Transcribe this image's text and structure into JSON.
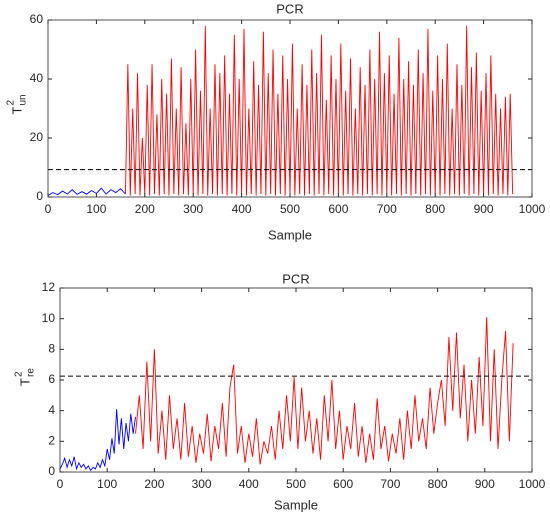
{
  "chart_data": [
    {
      "type": "line",
      "title": "PCR",
      "xlabel": "Sample",
      "ylabel": {
        "base": "T",
        "sup": "2",
        "sub": "un"
      },
      "xlim": [
        0,
        1000
      ],
      "xticks": [
        0,
        100,
        200,
        300,
        400,
        500,
        600,
        700,
        800,
        900,
        1000
      ],
      "ylim": [
        0,
        60
      ],
      "yticks": [
        0,
        20,
        40,
        60
      ],
      "threshold": 9.3,
      "threshold_color": "#000000",
      "series": [
        {
          "color": "#0000ff",
          "x": [
            0,
            10,
            20,
            30,
            40,
            50,
            60,
            70,
            80,
            90,
            100,
            110,
            120,
            130,
            140,
            150,
            160
          ],
          "values": [
            0.5,
            1.5,
            0.8,
            2,
            1,
            2.5,
            0.9,
            1.8,
            1,
            2.2,
            1.2,
            3,
            1,
            2.5,
            1.5,
            2.8,
            1
          ]
        },
        {
          "color": "#ff0000",
          "x": [
            160,
            165,
            170,
            175,
            180,
            185,
            190,
            195,
            200,
            205,
            210,
            215,
            220,
            225,
            230,
            235,
            240,
            245,
            250,
            255,
            260,
            265,
            270,
            275,
            280,
            285,
            290,
            295,
            300,
            305,
            310,
            315,
            320,
            325,
            330,
            335,
            340,
            345,
            350,
            355,
            360,
            365,
            370,
            375,
            380,
            385,
            390,
            395,
            400,
            405,
            410,
            415,
            420,
            425,
            430,
            435,
            440,
            445,
            450,
            455,
            460,
            465,
            470,
            475,
            480,
            485,
            490,
            495,
            500,
            505,
            510,
            515,
            520,
            525,
            530,
            535,
            540,
            545,
            550,
            555,
            560,
            565,
            570,
            575,
            580,
            585,
            590,
            595,
            600,
            605,
            610,
            615,
            620,
            625,
            630,
            635,
            640,
            645,
            650,
            655,
            660,
            665,
            670,
            675,
            680,
            685,
            690,
            695,
            700,
            705,
            710,
            715,
            720,
            725,
            730,
            735,
            740,
            745,
            750,
            755,
            760,
            765,
            770,
            775,
            780,
            785,
            790,
            795,
            800,
            805,
            810,
            815,
            820,
            825,
            830,
            835,
            840,
            845,
            850,
            855,
            860,
            865,
            870,
            875,
            880,
            885,
            890,
            895,
            900,
            905,
            910,
            915,
            920,
            925,
            930,
            935,
            940,
            945,
            950,
            955,
            960
          ],
          "values": [
            1,
            45,
            0.5,
            30,
            1,
            42,
            0.5,
            20,
            1,
            38,
            0.5,
            45,
            1,
            28,
            0.5,
            40,
            1,
            35,
            0.5,
            47,
            1,
            30,
            0.5,
            44,
            1,
            25,
            0.5,
            40,
            1,
            50,
            0.5,
            36,
            1,
            58,
            0.5,
            30,
            1,
            45,
            0.5,
            42,
            1,
            48,
            0.5,
            35,
            1,
            55,
            0.5,
            40,
            1,
            57,
            0.5,
            30,
            1,
            46,
            0.5,
            38,
            1,
            56,
            0.5,
            42,
            1,
            50,
            0.5,
            35,
            1,
            48,
            0.5,
            40,
            1,
            52,
            0.5,
            30,
            1,
            45,
            0.5,
            38,
            1,
            50,
            0.5,
            42,
            1,
            55,
            0.5,
            33,
            1,
            48,
            0.5,
            40,
            1,
            52,
            0.5,
            36,
            1,
            47,
            0.5,
            30,
            1,
            44,
            0.5,
            38,
            1,
            50,
            0.5,
            40,
            1,
            56,
            0.5,
            42,
            1,
            48,
            0.5,
            35,
            1,
            54,
            0.5,
            40,
            1,
            46,
            0.5,
            38,
            1,
            50,
            0.5,
            42,
            1,
            57,
            0.5,
            36,
            1,
            48,
            0.5,
            40,
            1,
            52,
            0.5,
            30,
            1,
            45,
            0.5,
            38,
            1,
            58,
            0.5,
            44,
            1,
            49,
            0.5,
            36,
            1,
            42,
            0.5,
            48,
            1,
            35,
            0.5,
            30,
            1,
            34,
            0.5,
            35,
            1
          ]
        }
      ]
    },
    {
      "type": "line",
      "title": "PCR",
      "xlabel": "Sample",
      "ylabel": {
        "base": "T",
        "sup": "2",
        "sub": "re"
      },
      "xlim": [
        0,
        1000
      ],
      "xticks": [
        0,
        100,
        200,
        300,
        400,
        500,
        600,
        700,
        800,
        900,
        1000
      ],
      "ylim": [
        0,
        12
      ],
      "yticks": [
        0,
        2,
        4,
        6,
        8,
        10,
        12
      ],
      "threshold": 6.25,
      "threshold_color": "#000000",
      "series": [
        {
          "color": "#0000ff",
          "x": [
            0,
            5,
            10,
            15,
            20,
            25,
            30,
            35,
            40,
            45,
            50,
            55,
            60,
            65,
            70,
            75,
            80,
            85,
            90,
            95,
            100,
            105,
            110,
            115,
            120,
            125,
            130,
            135,
            140,
            145,
            150,
            155,
            160
          ],
          "values": [
            0.2,
            0.5,
            0.9,
            0.3,
            0.8,
            0.4,
            1,
            0.2,
            0.6,
            0.3,
            0.5,
            0.2,
            0.4,
            0.1,
            0.3,
            0.2,
            0.6,
            0.3,
            0.8,
            0.4,
            1.5,
            0.8,
            2.2,
            1.2,
            4.1,
            1.8,
            3.5,
            1.5,
            3.2,
            2,
            3.8,
            2.5,
            3.6
          ]
        },
        {
          "color": "#ff0000",
          "x": [
            160,
            168,
            176,
            184,
            192,
            200,
            208,
            216,
            224,
            232,
            240,
            248,
            256,
            264,
            272,
            280,
            288,
            296,
            304,
            312,
            320,
            328,
            336,
            344,
            352,
            360,
            368,
            376,
            384,
            392,
            400,
            408,
            416,
            424,
            432,
            440,
            448,
            456,
            464,
            472,
            480,
            488,
            496,
            504,
            512,
            520,
            528,
            536,
            544,
            552,
            560,
            568,
            576,
            584,
            592,
            600,
            608,
            616,
            624,
            632,
            640,
            648,
            656,
            664,
            672,
            680,
            688,
            696,
            704,
            712,
            720,
            728,
            736,
            744,
            752,
            760,
            768,
            776,
            784,
            792,
            800,
            808,
            816,
            824,
            832,
            840,
            848,
            856,
            864,
            872,
            880,
            888,
            896,
            904,
            912,
            920,
            928,
            936,
            944,
            952,
            960
          ],
          "values": [
            2.5,
            5,
            1.5,
            7.2,
            2,
            8,
            1.2,
            4,
            0.8,
            5,
            1.5,
            3.5,
            0.8,
            4.5,
            1,
            3,
            0.6,
            2.5,
            1.2,
            3.8,
            0.7,
            3,
            1.5,
            4.5,
            1,
            5.5,
            7,
            1.2,
            3,
            0.6,
            2.5,
            1,
            3.5,
            0.5,
            2,
            1.2,
            3,
            0.8,
            4,
            1.5,
            5,
            2,
            6.2,
            1.5,
            5.5,
            2,
            4,
            1.2,
            3.5,
            0.8,
            5,
            2,
            6,
            1.5,
            4,
            0.8,
            3,
            1.5,
            4.5,
            1,
            3,
            0.6,
            2.5,
            0.8,
            4.8,
            1.5,
            3,
            0.7,
            2.5,
            1.2,
            3.5,
            0.8,
            4,
            1.5,
            5,
            2,
            3.5,
            1.5,
            5.5,
            2.5,
            4.5,
            6,
            3,
            8.8,
            4,
            9.1,
            3.5,
            7,
            2,
            6,
            2.5,
            7.5,
            3,
            10.1,
            2,
            8,
            1.5,
            6,
            9.2,
            2,
            8.4
          ]
        }
      ]
    }
  ]
}
